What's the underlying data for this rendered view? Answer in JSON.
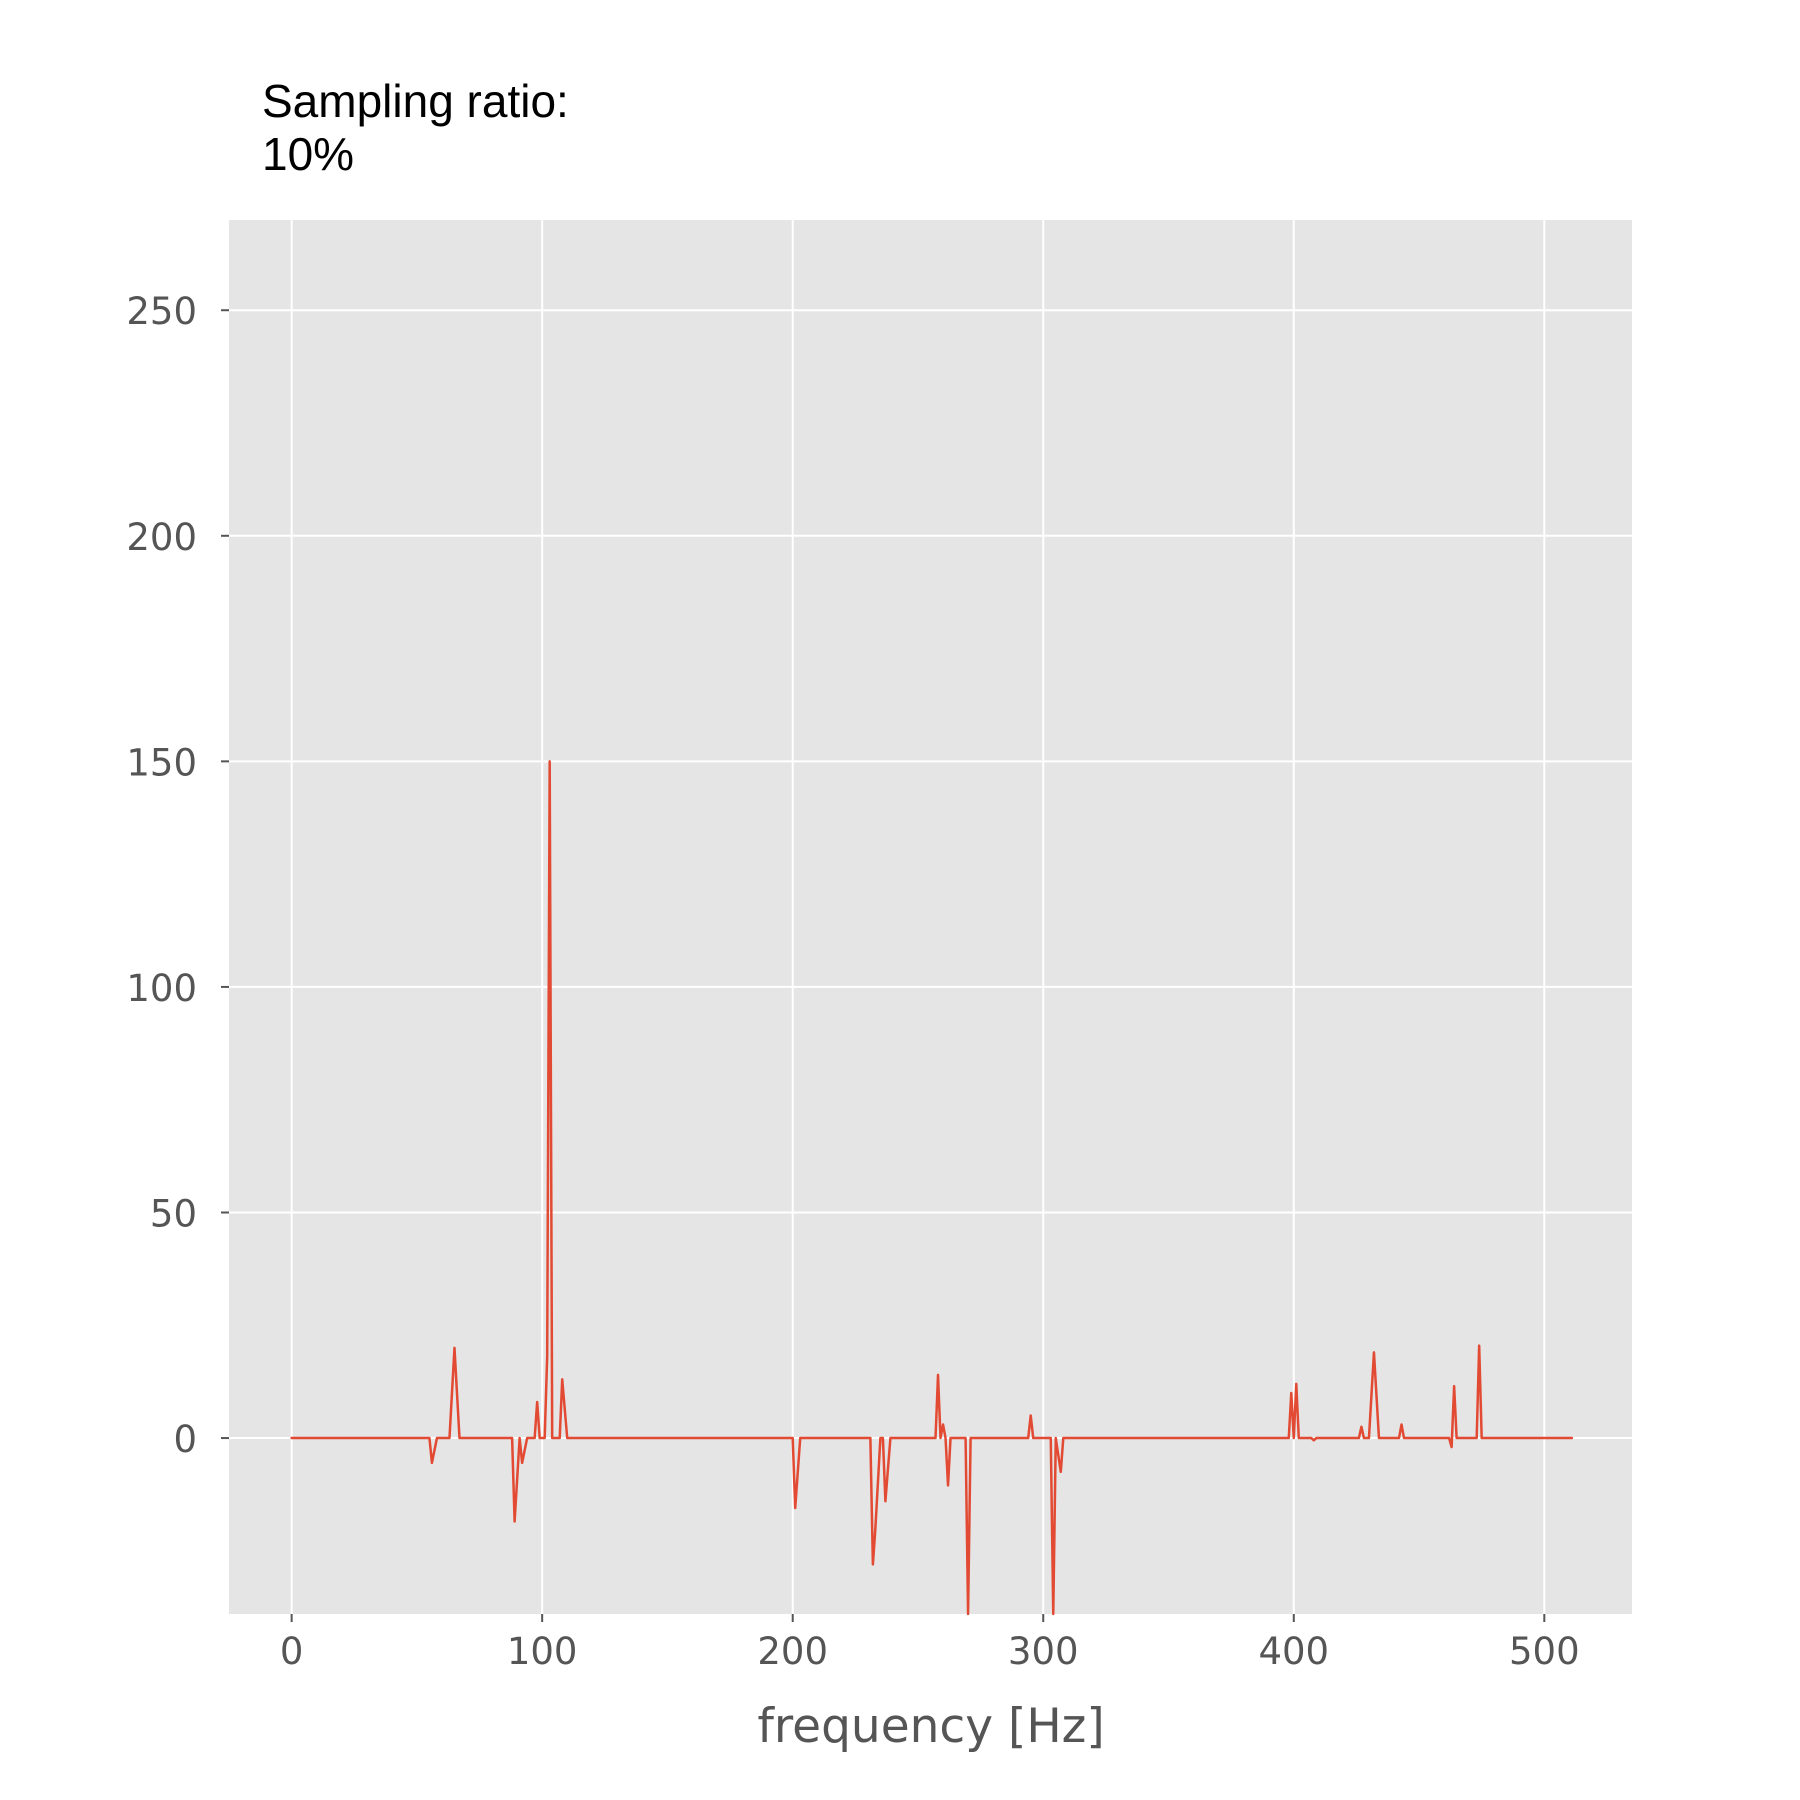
{
  "chart_data": {
    "type": "line",
    "title": "Sampling ratio:\n10%",
    "xlabel": "frequency [Hz]",
    "ylabel": "",
    "xlim": [
      -25,
      535
    ],
    "ylim": [
      -39,
      270
    ],
    "xticks": [
      0,
      100,
      200,
      300,
      400,
      500
    ],
    "yticks": [
      0,
      50,
      100,
      150,
      200,
      250
    ],
    "xtick_labels": [
      "0",
      "100",
      "200",
      "300",
      "400",
      "500"
    ],
    "ytick_labels": [
      "0",
      "50",
      "100",
      "150",
      "200",
      "250"
    ],
    "grid": true,
    "colors": {
      "plot_background": "#e5e5e5",
      "grid": "#ffffff",
      "line": "#e24a33",
      "tick_text": "#555555",
      "axis_label_text": "#555555",
      "title_text": "#000000"
    },
    "series": [
      {
        "x": [
          0,
          55,
          56,
          58,
          63,
          65,
          67,
          88,
          89,
          91,
          92,
          94,
          97,
          98,
          99,
          101,
          102,
          103,
          104,
          107,
          108,
          110,
          200,
          201,
          203,
          231,
          232,
          233,
          235,
          236,
          237,
          239,
          257,
          258,
          259,
          260,
          261,
          262,
          263,
          264,
          265,
          269,
          270,
          271,
          273,
          294,
          295,
          296,
          303,
          304,
          305,
          307,
          308,
          398,
          399,
          400,
          401,
          402,
          407,
          408,
          409,
          426,
          427,
          428,
          430,
          432,
          434,
          442,
          443,
          444,
          462,
          463,
          464,
          465,
          473,
          474,
          475,
          510,
          511
        ],
        "y": [
          0,
          0,
          -5.5,
          0,
          0,
          20,
          0,
          0,
          -18.5,
          0,
          -5.5,
          0,
          0,
          8,
          0,
          0,
          18,
          150,
          0,
          0,
          13,
          0,
          0,
          -15.5,
          0,
          0,
          -28,
          -20,
          0,
          0,
          -14,
          0,
          0,
          14,
          0,
          3,
          0,
          -10.5,
          0,
          0,
          0,
          0,
          -39,
          0,
          0,
          0,
          5,
          0,
          0,
          -39,
          0,
          -7.5,
          0,
          0,
          10,
          0,
          12,
          0,
          0,
          -0.5,
          0,
          0,
          2.5,
          0,
          0,
          19,
          0,
          0,
          3,
          0,
          0,
          -2,
          11.5,
          0,
          0,
          20.5,
          0,
          0,
          0
        ]
      }
    ]
  }
}
